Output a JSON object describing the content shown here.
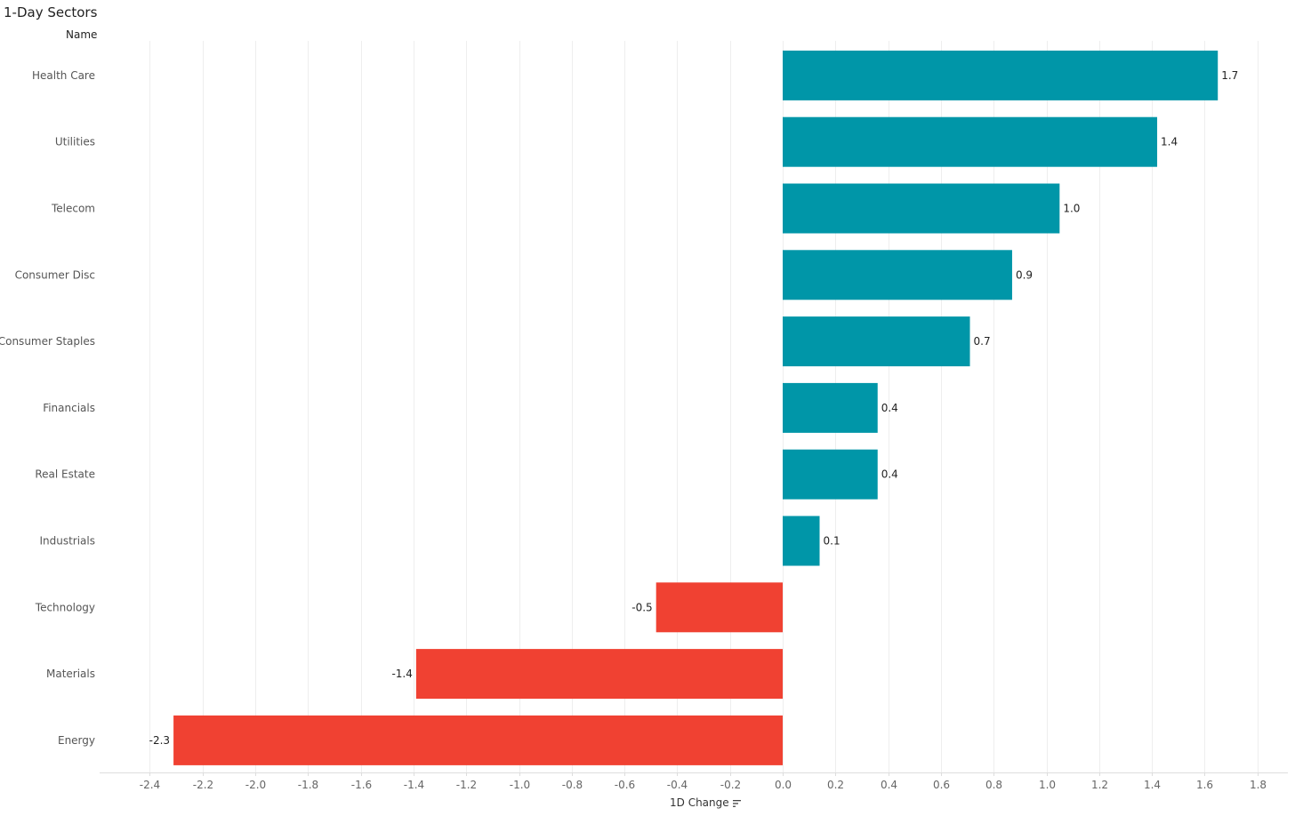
{
  "title": "1-Day Sectors",
  "row_header": "Name",
  "sort_icon": "sort-descending-icon",
  "chart_data": {
    "type": "bar",
    "orientation": "horizontal",
    "title": "1-Day Sectors",
    "xlabel": "1D Change",
    "ylabel": "Name",
    "categories": [
      "Health Care",
      "Utilities",
      "Telecom",
      "Consumer Disc",
      "Consumer Staples",
      "Financials",
      "Real Estate",
      "Industrials",
      "Technology",
      "Materials",
      "Energy"
    ],
    "values": [
      1.65,
      1.42,
      1.05,
      0.87,
      0.71,
      0.36,
      0.36,
      0.14,
      -0.48,
      -1.39,
      -2.31
    ],
    "labels": [
      "1.7",
      "1.4",
      "1.0",
      "0.9",
      "0.7",
      "0.4",
      "0.4",
      "0.1",
      "-0.5",
      "-1.4",
      "-2.3"
    ],
    "xlim": [
      -2.6,
      1.9
    ],
    "xticks": [
      -2.4,
      -2.2,
      -2.0,
      -1.8,
      -1.6,
      -1.4,
      -1.2,
      -1.0,
      -0.8,
      -0.6,
      -0.4,
      -0.2,
      0.0,
      0.2,
      0.4,
      0.6,
      0.8,
      1.0,
      1.2,
      1.4,
      1.6,
      1.8
    ],
    "xtick_labels": [
      "-2.4",
      "-2.2",
      "-2.0",
      "-1.8",
      "-1.6",
      "-1.4",
      "-1.2",
      "-1.0",
      "-0.8",
      "-0.6",
      "-0.4",
      "-0.2",
      "0.0",
      "0.2",
      "0.4",
      "0.6",
      "0.8",
      "1.0",
      "1.2",
      "1.4",
      "1.6",
      "1.8"
    ],
    "grid": true,
    "colors": {
      "positive": "#0096A8",
      "negative": "#F04132",
      "grid": "#EEEEEE",
      "axis": "#DDDDDD"
    }
  }
}
